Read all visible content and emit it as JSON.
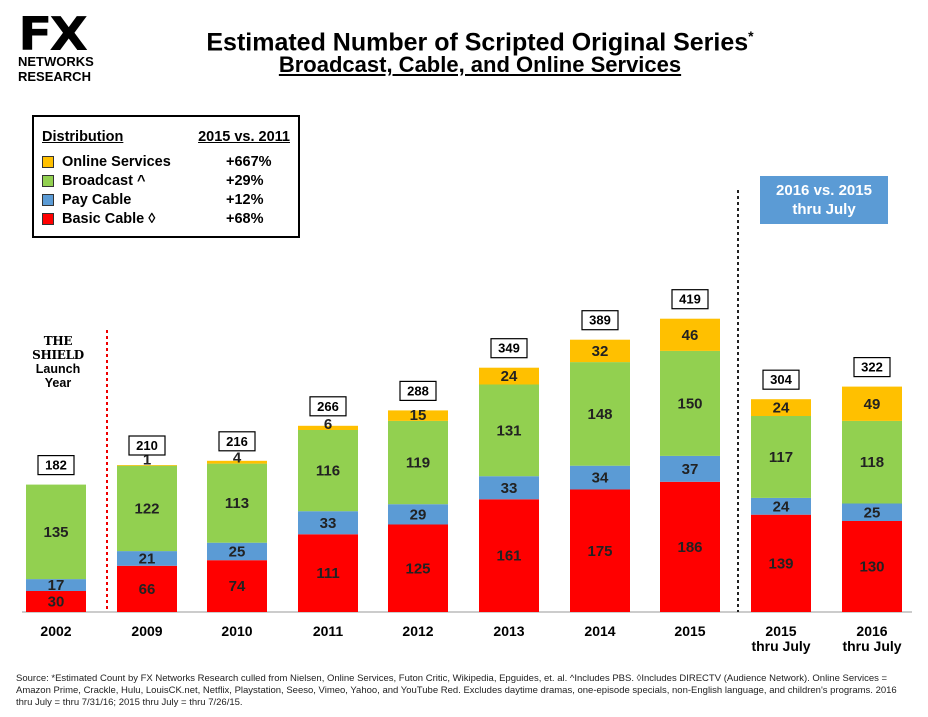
{
  "logo": {
    "brand": "FX",
    "line1": "NETWORKS",
    "line2": "RESEARCH"
  },
  "title": "Estimated Number of Scripted Original Series",
  "title_mark": "*",
  "subtitle": "Broadcast, Cable, and Online Services",
  "legend": {
    "header_left": "Distribution",
    "header_right": "2015 vs. 2011",
    "rows": [
      {
        "label": "Online Services",
        "change": "+667%",
        "color": "#ffc000"
      },
      {
        "label": "Broadcast ^",
        "change": "+29%",
        "color": "#92d050"
      },
      {
        "label": "Pay Cable",
        "change": "+12%",
        "color": "#5b9bd5"
      },
      {
        "label": "Basic Cable ◊",
        "change": "+68%",
        "color": "#ff0000"
      }
    ]
  },
  "annotation": {
    "line1": "THE SHIELD",
    "line2": "Launch",
    "line3": "Year"
  },
  "callout": {
    "line1": "2016 vs. 2015",
    "line2": "thru July"
  },
  "chart_data": {
    "type": "bar",
    "stacked": true,
    "title": "Estimated Number of Scripted Original Series",
    "subtitle": "Broadcast, Cable, and Online Services",
    "categories": [
      "2002",
      "2009",
      "2010",
      "2011",
      "2012",
      "2013",
      "2014",
      "2015",
      "2015 thru July",
      "2016 thru July"
    ],
    "series": [
      {
        "name": "Basic Cable ◊",
        "color": "#ff0000",
        "values": [
          30,
          66,
          74,
          111,
          125,
          161,
          175,
          186,
          139,
          130
        ]
      },
      {
        "name": "Pay Cable",
        "color": "#5b9bd5",
        "values": [
          17,
          21,
          25,
          33,
          29,
          33,
          34,
          37,
          24,
          25
        ]
      },
      {
        "name": "Broadcast ^",
        "color": "#92d050",
        "values": [
          135,
          122,
          113,
          116,
          119,
          131,
          148,
          150,
          117,
          118
        ]
      },
      {
        "name": "Online Services",
        "color": "#ffc000",
        "values": [
          0,
          1,
          4,
          6,
          15,
          24,
          32,
          46,
          24,
          49
        ]
      }
    ],
    "totals": [
      182,
      210,
      216,
      266,
      288,
      349,
      389,
      419,
      304,
      322
    ],
    "ylim": [
      0,
      450
    ],
    "grid": false,
    "xlabel": "",
    "ylabel": ""
  },
  "source": "Source:  *Estimated Count by FX Networks Research culled from Nielsen, Online Services, Futon Critic, Wikipedia, Epguides, et. al.  ^Includes PBS.  ◊Includes DIRECTV (Audience Network).  Online Services = Amazon Prime, Crackle, Hulu, LouisCK.net, Netflix, Playstation, Seeso, Vimeo, Yahoo, and YouTube Red.   Excludes daytime dramas, one-episode specials, non-English language, and children's programs.  2016 thru July = thru 7/31/16; 2015 thru July = thru 7/26/15."
}
